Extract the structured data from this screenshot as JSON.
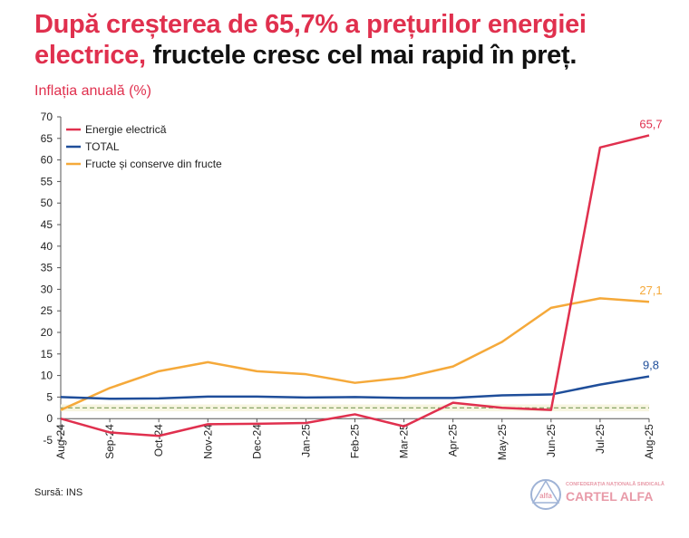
{
  "title": {
    "highlight": "După creșterea de 65,7% a prețurilor energiei electrice,",
    "rest": " fructele cresc cel mai rapid în preț."
  },
  "source": "Sursă: INS",
  "logo": {
    "line1": "CONFEDERAȚIA NAȚIONALĂ SINDICALĂ",
    "line2": "CARTEL ALFA",
    "emblem": "alfa",
    "emblem_sub": "CARTEL"
  },
  "chart_data": {
    "type": "line",
    "ylabel": "Inflația anuală (%)",
    "ylim": [
      -5,
      70
    ],
    "yticks": [
      -5,
      0,
      5,
      10,
      15,
      20,
      25,
      30,
      35,
      40,
      45,
      50,
      55,
      60,
      65,
      70
    ],
    "categories": [
      "Aug-24",
      "Sep-24",
      "Oct-24",
      "Nov-24",
      "Dec-24",
      "Jan-25",
      "Feb-25",
      "Mar-25",
      "Apr-25",
      "May-25",
      "Jun-25",
      "Jul-25",
      "Aug-25"
    ],
    "legend_position": "top-left",
    "grid": false,
    "reference_line": {
      "value": 2.5,
      "style": "dashed"
    },
    "series": [
      {
        "name": "Energie electrică",
        "color": "#e0304e",
        "values": [
          0,
          -3.2,
          -4,
          -1.3,
          -1.2,
          -1,
          1,
          -1.8,
          3.7,
          2.5,
          2,
          62.9,
          65.7
        ],
        "end_label": "65,7"
      },
      {
        "name": "TOTAL",
        "color": "#1f4e9a",
        "values": [
          5,
          4.6,
          4.7,
          5.1,
          5.1,
          4.9,
          5,
          4.8,
          4.8,
          5.4,
          5.6,
          7.9,
          9.8
        ],
        "end_label": "9,8"
      },
      {
        "name": "Fructe și conserve din fructe",
        "color": "#f5a93a",
        "values": [
          2,
          7.1,
          11,
          13.1,
          11,
          10.3,
          8.3,
          9.5,
          12.1,
          17.8,
          25.7,
          27.9,
          27.1
        ],
        "end_label": "27,1"
      }
    ]
  }
}
